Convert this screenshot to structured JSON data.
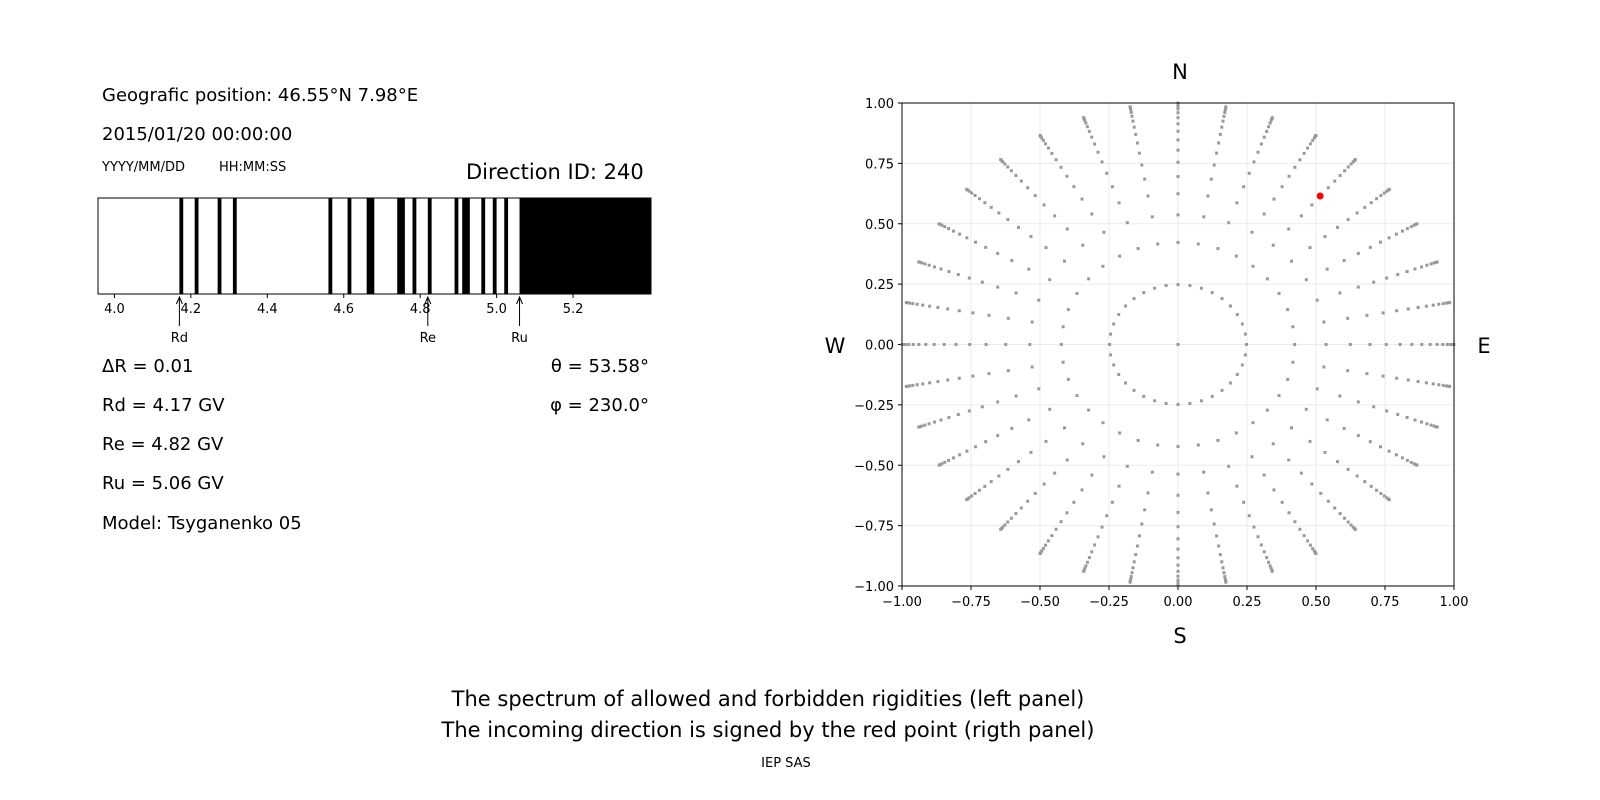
{
  "left_panel": {
    "position": "Geografic position: 46.55°N 7.98°E",
    "datetime": "2015/01/20 00:00:00",
    "date_format": "YYYY/MM/DD",
    "time_format": "HH:MM:SS",
    "direction_id": "Direction ID: 240",
    "delta_r": "ΔR = 0.01",
    "rd": "Rd = 4.17 GV",
    "re": "Re = 4.82 GV",
    "ru": "Ru = 5.06 GV",
    "model": "Model: Tsyganenko 05",
    "theta": "θ = 53.58°",
    "phi": "φ = 230.0°"
  },
  "chart_data": [
    {
      "type": "bar",
      "xlim": [
        3.957,
        5.404
      ],
      "xticks": [
        "4.0",
        "4.2",
        "4.4",
        "4.6",
        "4.8",
        "5.0",
        "5.2"
      ],
      "forbidden_bands": [
        [
          4.17,
          4.18
        ],
        [
          4.21,
          4.22
        ],
        [
          4.27,
          4.28
        ],
        [
          4.31,
          4.32
        ],
        [
          4.56,
          4.57
        ],
        [
          4.61,
          4.62
        ],
        [
          4.66,
          4.68
        ],
        [
          4.74,
          4.76
        ],
        [
          4.78,
          4.79
        ],
        [
          4.82,
          4.83
        ],
        [
          4.89,
          4.9
        ],
        [
          4.91,
          4.93
        ],
        [
          4.96,
          4.97
        ],
        [
          4.99,
          5.0
        ],
        [
          5.02,
          5.03
        ],
        [
          5.06,
          5.404
        ]
      ],
      "band_color": "#000000",
      "markers": [
        {
          "label": "Rd",
          "x": 4.17
        },
        {
          "label": "Re",
          "x": 4.82
        },
        {
          "label": "Ru",
          "x": 5.06
        }
      ]
    },
    {
      "type": "scatter",
      "xlim": [
        -1,
        1
      ],
      "ylim": [
        -1,
        1
      ],
      "xticks": [
        "−1.00",
        "−0.75",
        "−0.50",
        "−0.25",
        "0.00",
        "0.25",
        "0.50",
        "0.75",
        "1.00"
      ],
      "yticks": [
        "−1.00",
        "−0.75",
        "−0.50",
        "−0.25",
        "0.00",
        "0.25",
        "0.50",
        "0.75",
        "1.00"
      ],
      "grid": true,
      "compass": {
        "n": "N",
        "s": "S",
        "e": "E",
        "w": "W"
      },
      "grid_points": {
        "azimuth_step_deg": 10,
        "ring_count": 16,
        "center_point": true,
        "color": "#999999"
      },
      "highlight_point": {
        "x": 0.515,
        "y": 0.615,
        "color": "#ff0000"
      }
    }
  ],
  "caption": {
    "line1": "The spectrum of allowed and forbidden rigidities (left panel)",
    "line2": "The incoming direction is signed by the red point (rigth panel)",
    "credit": "IEP SAS"
  }
}
